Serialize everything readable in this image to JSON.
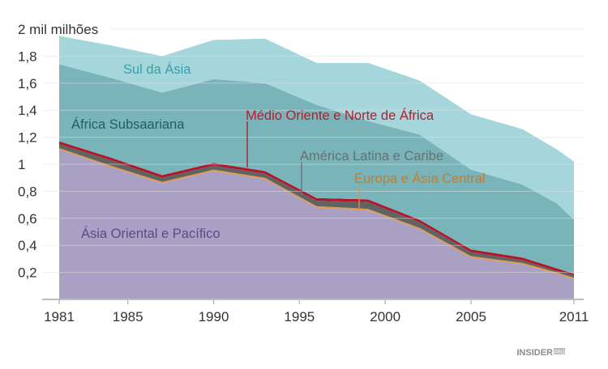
{
  "chart_data": {
    "type": "area",
    "stacked": true,
    "title": "",
    "xlabel": "",
    "ylabel": "2 mil milhões",
    "x": [
      1981,
      1984,
      1987,
      1990,
      1993,
      1996,
      1999,
      2002,
      2005,
      2008,
      2010,
      2011
    ],
    "xlim": [
      1981,
      2011
    ],
    "ylim": [
      0,
      2
    ],
    "grid": true,
    "legend": "inline labels",
    "x_ticks": [
      "1981",
      "1985",
      "1990",
      "1995",
      "2000",
      "2005",
      "2011"
    ],
    "x_tick_values": [
      1981,
      1985,
      1990,
      1995,
      2000,
      2005,
      2011
    ],
    "y_ticks": [
      "0,2",
      "0,4",
      "0,6",
      "0,8",
      "1",
      "1,2",
      "1,4",
      "1,6",
      "1,8",
      "2 mil milhões"
    ],
    "y_tick_values": [
      0.2,
      0.4,
      0.6,
      0.8,
      1,
      1.2,
      1.4,
      1.6,
      1.8,
      2
    ],
    "series": [
      {
        "name": "Ásia Oriental e Pacífico",
        "color": "#a9a0c4",
        "label_color": "#5b4b8a",
        "values": [
          1.11,
          0.98,
          0.86,
          0.95,
          0.89,
          0.68,
          0.66,
          0.52,
          0.31,
          0.26,
          0.19,
          0.15
        ]
      },
      {
        "name": "Europa e Ásia Central",
        "color": "#e8963c",
        "label_color": "#cc7a2b",
        "values": [
          0.01,
          0.01,
          0.01,
          0.01,
          0.01,
          0.01,
          0.01,
          0.01,
          0.01,
          0.01,
          0.01,
          0.01
        ]
      },
      {
        "name": "América Latina e Caribe",
        "color": "#5f6462",
        "label_color": "#6a6f72",
        "values": [
          0.03,
          0.04,
          0.03,
          0.03,
          0.03,
          0.04,
          0.05,
          0.04,
          0.03,
          0.02,
          0.01,
          0.02
        ]
      },
      {
        "name": "Médio Oriente e Norte de África",
        "color": "#b0172a",
        "label_color": "#b81c2e",
        "values": [
          0.02,
          0.02,
          0.02,
          0.02,
          0.02,
          0.02,
          0.02,
          0.02,
          0.02,
          0.02,
          0.02,
          0.01
        ]
      },
      {
        "name": "África Subsaariana",
        "color": "#78b4b9",
        "label_color": "#1f5f63",
        "values": [
          0.57,
          0.59,
          0.61,
          0.62,
          0.65,
          0.69,
          0.58,
          0.63,
          0.59,
          0.54,
          0.48,
          0.4
        ]
      },
      {
        "name": "Sul da Ásia",
        "color": "#a5d6dc",
        "label_color": "#3a9ea5",
        "values": [
          0.21,
          0.24,
          0.27,
          0.29,
          0.33,
          0.31,
          0.43,
          0.4,
          0.41,
          0.41,
          0.4,
          0.43
        ]
      }
    ]
  },
  "branding": {
    "logo": "INSIDER PRO"
  }
}
